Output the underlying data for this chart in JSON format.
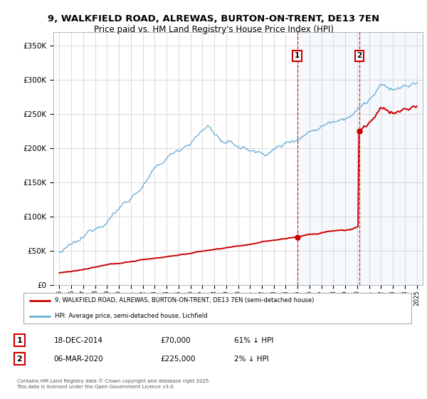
{
  "title_line1": "9, WALKFIELD ROAD, ALREWAS, BURTON-ON-TRENT, DE13 7EN",
  "title_line2": "Price paid vs. HM Land Registry's House Price Index (HPI)",
  "ytick_values": [
    0,
    50000,
    100000,
    150000,
    200000,
    250000,
    300000,
    350000
  ],
  "ylim": [
    0,
    370000
  ],
  "xlim_start": 1994.5,
  "xlim_end": 2025.5,
  "transaction1": {
    "date_year": 2014.96,
    "price": 70000,
    "label": "1",
    "date_str": "18-DEC-2014",
    "pct": "61% ↓ HPI"
  },
  "transaction2": {
    "date_year": 2020.18,
    "price": 225000,
    "label": "2",
    "date_str": "06-MAR-2020",
    "pct": "2% ↓ HPI"
  },
  "hpi_color": "#6baed6",
  "price_color": "#cc0000",
  "background_color": "#ffffff",
  "plot_bg_color": "#ffffff",
  "grid_color": "#cccccc",
  "shading_color": "#ddeeff",
  "legend_label_price": "9, WALKFIELD ROAD, ALREWAS, BURTON-ON-TRENT, DE13 7EN (semi-detached house)",
  "legend_label_hpi": "HPI: Average price, semi-detached house, Lichfield",
  "footer": "Contains HM Land Registry data © Crown copyright and database right 2025.\nThis data is licensed under the Open Government Licence v3.0.",
  "xticks": [
    1995,
    1996,
    1997,
    1998,
    1999,
    2000,
    2001,
    2002,
    2003,
    2004,
    2005,
    2006,
    2007,
    2008,
    2009,
    2010,
    2011,
    2012,
    2013,
    2014,
    2015,
    2016,
    2017,
    2018,
    2019,
    2020,
    2021,
    2022,
    2023,
    2024,
    2025
  ]
}
